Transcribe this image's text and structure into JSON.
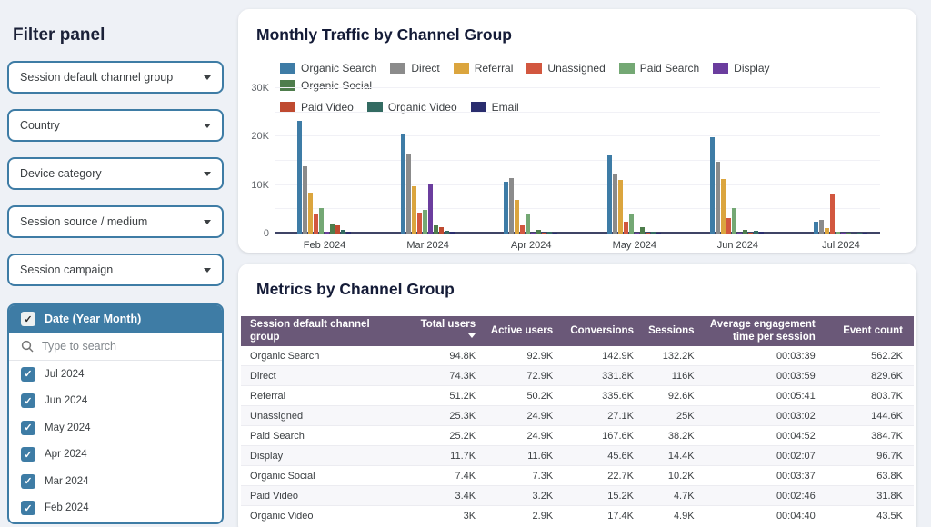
{
  "colors": {
    "accent": "#3e7ca5",
    "page_background": "#eef1f6",
    "table_header": "#6a5878",
    "title_text": "#141b37"
  },
  "filter_panel": {
    "title": "Filter panel",
    "dropdowns": [
      "Session default channel group",
      "Country",
      "Device category",
      "Session source / medium",
      "Session campaign"
    ],
    "date_filter": {
      "label": "Date (Year Month)",
      "checked": true,
      "search_placeholder": "Type to search",
      "options": [
        {
          "label": "Jul 2024",
          "checked": true
        },
        {
          "label": "Jun 2024",
          "checked": true
        },
        {
          "label": "May 2024",
          "checked": true
        },
        {
          "label": "Apr 2024",
          "checked": true
        },
        {
          "label": "Mar 2024",
          "checked": true
        },
        {
          "label": "Feb 2024",
          "checked": true
        }
      ]
    }
  },
  "traffic_chart": {
    "title": "Monthly Traffic by Channel Group"
  },
  "chart_data": {
    "type": "bar",
    "title": "Monthly Traffic by Channel Group",
    "categories": [
      "Feb 2024",
      "Mar 2024",
      "Apr 2024",
      "May 2024",
      "Jun 2024",
      "Jul 2024"
    ],
    "series": [
      {
        "name": "Organic Search",
        "color": "#3e7ca6",
        "values": [
          23200,
          20600,
          10700,
          16100,
          19900,
          2400
        ]
      },
      {
        "name": "Direct",
        "color": "#8b8b8b",
        "values": [
          13900,
          16400,
          11500,
          12200,
          14900,
          2900
        ]
      },
      {
        "name": "Referral",
        "color": "#dba53e",
        "values": [
          8500,
          9700,
          7000,
          11100,
          11300,
          1100
        ]
      },
      {
        "name": "Unassigned",
        "color": "#d2573f",
        "values": [
          3900,
          4300,
          1700,
          2400,
          3100,
          8100
        ]
      },
      {
        "name": "Paid Search",
        "color": "#74a874",
        "values": [
          5200,
          4800,
          3900,
          4100,
          5200,
          450
        ]
      },
      {
        "name": "Display",
        "color": "#6b3d9e",
        "values": [
          400,
          10400,
          200,
          100,
          150,
          80
        ]
      },
      {
        "name": "Organic Social",
        "color": "#4e7d4c",
        "values": [
          1900,
          1700,
          800,
          1300,
          800,
          120
        ]
      },
      {
        "name": "Paid Video",
        "color": "#bf4a30",
        "values": [
          1600,
          1400,
          150,
          60,
          80,
          0
        ]
      },
      {
        "name": "Organic Video",
        "color": "#336b62",
        "values": [
          700,
          500,
          350,
          300,
          500,
          60
        ]
      },
      {
        "name": "Email",
        "color": "#2a2d6e",
        "values": [
          350,
          300,
          120,
          250,
          300,
          50
        ]
      }
    ],
    "ylim": [
      0,
      30000
    ],
    "ytick_labels": [
      "0",
      "10K",
      "20K",
      "30K"
    ],
    "grid": true,
    "legend_position": "top"
  },
  "metrics_table": {
    "title": "Metrics by Channel Group",
    "columns": [
      "Session default channel group",
      "Total users",
      "Active users",
      "Conversions",
      "Sessions",
      "Average engagement time per session",
      "Event count"
    ],
    "sorted_by": "Total users",
    "rows": [
      [
        "Organic Search",
        "94.8K",
        "92.9K",
        "142.9K",
        "132.2K",
        "00:03:39",
        "562.2K"
      ],
      [
        "Direct",
        "74.3K",
        "72.9K",
        "331.8K",
        "116K",
        "00:03:59",
        "829.6K"
      ],
      [
        "Referral",
        "51.2K",
        "50.2K",
        "335.6K",
        "92.6K",
        "00:05:41",
        "803.7K"
      ],
      [
        "Unassigned",
        "25.3K",
        "24.9K",
        "27.1K",
        "25K",
        "00:03:02",
        "144.6K"
      ],
      [
        "Paid Search",
        "25.2K",
        "24.9K",
        "167.6K",
        "38.2K",
        "00:04:52",
        "384.7K"
      ],
      [
        "Display",
        "11.7K",
        "11.6K",
        "45.6K",
        "14.4K",
        "00:02:07",
        "96.7K"
      ],
      [
        "Organic Social",
        "7.4K",
        "7.3K",
        "22.7K",
        "10.2K",
        "00:03:37",
        "63.8K"
      ],
      [
        "Paid Video",
        "3.4K",
        "3.2K",
        "15.2K",
        "4.7K",
        "00:02:46",
        "31.8K"
      ],
      [
        "Organic Video",
        "3K",
        "2.9K",
        "17.4K",
        "4.9K",
        "00:04:40",
        "43.5K"
      ]
    ]
  }
}
